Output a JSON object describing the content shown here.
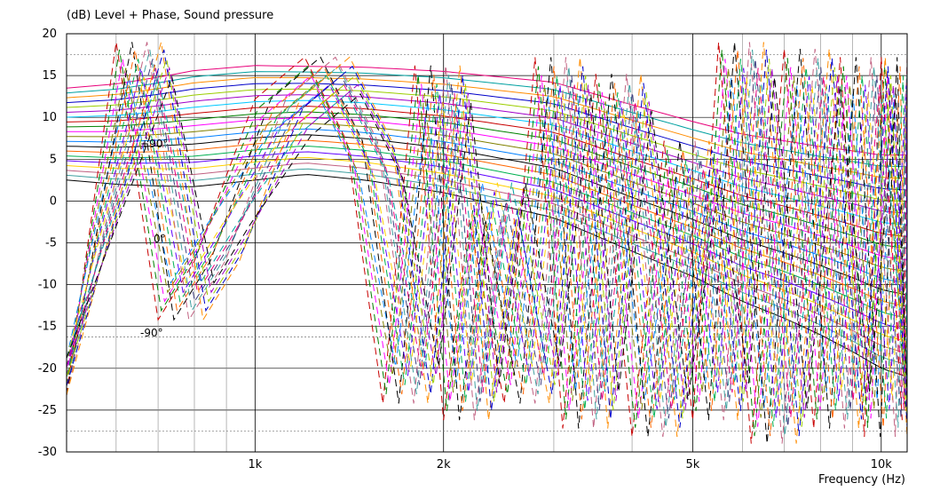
{
  "chart_data": {
    "type": "line",
    "title": "(dB)  Level + Phase, Sound pressure",
    "xlabel": "Frequency  (Hz)",
    "ylabel": "(dB)",
    "x_scale": "log",
    "xlim": [
      500,
      11000
    ],
    "ylim": [
      -30,
      20
    ],
    "grid": true,
    "y_ticks": [
      20,
      15,
      10,
      5,
      0,
      -5,
      -10,
      -15,
      -20,
      -25,
      -30
    ],
    "y_tick_labels": [
      "20",
      "15",
      "10",
      "5",
      "0",
      "-5",
      "-10",
      "-15",
      "-20",
      "-25",
      "-30"
    ],
    "x_major_ticks": [
      1000,
      2000,
      5000,
      10000
    ],
    "x_tick_labels": [
      "1k",
      "2k",
      "5k",
      "10k"
    ],
    "x_minor_ticks": [
      600,
      700,
      800,
      900,
      3000,
      4000,
      6000,
      7000,
      8000,
      9000
    ],
    "phase_axis": {
      "labels": [
        "+90°",
        "0°",
        "-90°"
      ],
      "dotted_levels_db": [
        17.5,
        -16.25,
        -27.5
      ]
    },
    "level_curves": {
      "count": 20,
      "base_values": [
        {
          "x": 500,
          "y": 13.5
        },
        {
          "x": 600,
          "y": 14.0
        },
        {
          "x": 700,
          "y": 14.8
        },
        {
          "x": 800,
          "y": 15.6
        },
        {
          "x": 1000,
          "y": 16.2
        },
        {
          "x": 1500,
          "y": 16.0
        },
        {
          "x": 2000,
          "y": 15.5
        },
        {
          "x": 3000,
          "y": 14.2
        },
        {
          "x": 4000,
          "y": 11.5
        },
        {
          "x": 5000,
          "y": 9.5
        },
        {
          "x": 6000,
          "y": 8.0
        },
        {
          "x": 7000,
          "y": 7.2
        },
        {
          "x": 8000,
          "y": 6.5
        },
        {
          "x": 9000,
          "y": 6.0
        },
        {
          "x": 10000,
          "y": 5.5
        },
        {
          "x": 11000,
          "y": 5.5
        }
      ],
      "lowest_curve": [
        {
          "x": 500,
          "y": 2.5
        },
        {
          "x": 600,
          "y": 2.0
        },
        {
          "x": 700,
          "y": 1.8
        },
        {
          "x": 800,
          "y": 1.7
        },
        {
          "x": 1000,
          "y": 2.5
        },
        {
          "x": 1200,
          "y": 3.2
        },
        {
          "x": 1500,
          "y": 2.5
        },
        {
          "x": 2000,
          "y": 1.0
        },
        {
          "x": 3000,
          "y": -2.0
        },
        {
          "x": 4000,
          "y": -6.0
        },
        {
          "x": 5000,
          "y": -9.0
        },
        {
          "x": 6000,
          "y": -12.0
        },
        {
          "x": 7000,
          "y": -14.0
        },
        {
          "x": 8000,
          "y": -16.0
        },
        {
          "x": 9000,
          "y": -18.0
        },
        {
          "x": 10000,
          "y": -20.0
        },
        {
          "x": 11000,
          "y": -21.0
        }
      ]
    },
    "phase_curves": {
      "count": 20,
      "points": [
        {
          "x": 500,
          "y": -21
        },
        {
          "x": 600,
          "y": 17
        },
        {
          "x": 700,
          "y": -12
        },
        {
          "x": 800,
          "y": -5
        },
        {
          "x": 1000,
          "y": 10
        },
        {
          "x": 1200,
          "y": 15
        },
        {
          "x": 1400,
          "y": 5
        },
        {
          "x": 1600,
          "y": -22
        },
        {
          "x": 1800,
          "y": 14
        },
        {
          "x": 2000,
          "y": -24
        },
        {
          "x": 2200,
          "y": 0
        },
        {
          "x": 2500,
          "y": -22
        },
        {
          "x": 2800,
          "y": 15
        },
        {
          "x": 3100,
          "y": -25
        },
        {
          "x": 3500,
          "y": 13
        },
        {
          "x": 4000,
          "y": -26
        },
        {
          "x": 4500,
          "y": 5
        },
        {
          "x": 5000,
          "y": -24
        },
        {
          "x": 5500,
          "y": 17
        },
        {
          "x": 6200,
          "y": -27
        },
        {
          "x": 7000,
          "y": 16
        },
        {
          "x": 7800,
          "y": -25
        },
        {
          "x": 8600,
          "y": 15
        },
        {
          "x": 9400,
          "y": -26
        },
        {
          "x": 10000,
          "y": 15
        },
        {
          "x": 10800,
          "y": -24
        }
      ]
    },
    "colors": [
      "#e8007a",
      "#00a0a0",
      "#ff8c00",
      "#0000c8",
      "#9bcd00",
      "#a000c8",
      "#00c8ff",
      "#c80000",
      "#008000",
      "#ff00ff",
      "#808000",
      "#0080ff",
      "#000000",
      "#ff6600",
      "#00b050",
      "#6000ff",
      "#ffd000",
      "#c06080",
      "#40a0a0",
      "#404080"
    ]
  }
}
